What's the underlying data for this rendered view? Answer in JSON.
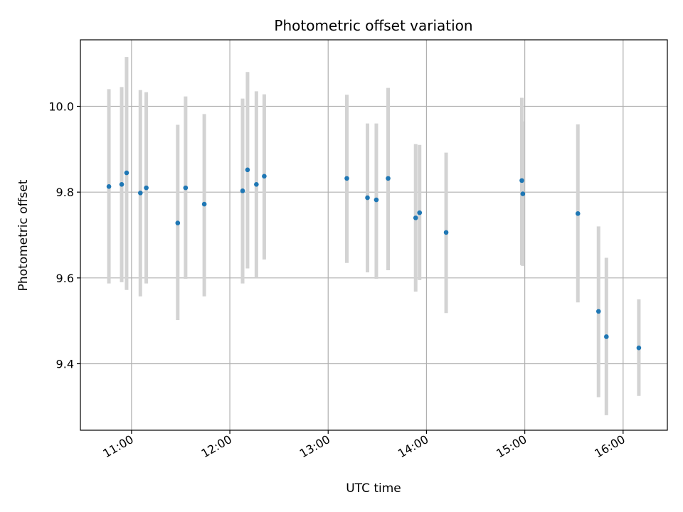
{
  "chart_data": {
    "type": "scatter",
    "title": "Photometric offset variation",
    "xlabel": "UTC time",
    "ylabel": "Photometric offset",
    "x_unit": "hours UTC",
    "xlim": [
      10.48,
      16.45
    ],
    "ylim": [
      9.245,
      10.155
    ],
    "x_ticks": [
      {
        "value": 11,
        "label": "11:00"
      },
      {
        "value": 12,
        "label": "12:00"
      },
      {
        "value": 13,
        "label": "13:00"
      },
      {
        "value": 14,
        "label": "14:00"
      },
      {
        "value": 15,
        "label": "15:00"
      },
      {
        "value": 16,
        "label": "16:00"
      }
    ],
    "y_ticks": [
      {
        "value": 9.4,
        "label": "9.4"
      },
      {
        "value": 9.6,
        "label": "9.6"
      },
      {
        "value": 9.8,
        "label": "9.8"
      },
      {
        "value": 10.0,
        "label": "10.0"
      }
    ],
    "grid": true,
    "marker_color": "#1f77b4",
    "errorbar_color": "#d3d3d3",
    "points": [
      {
        "x": 10.77,
        "y": 9.813,
        "err_low": 9.587,
        "err_high": 10.04
      },
      {
        "x": 10.9,
        "y": 9.818,
        "err_low": 9.59,
        "err_high": 10.045
      },
      {
        "x": 10.95,
        "y": 9.845,
        "err_low": 9.572,
        "err_high": 10.115
      },
      {
        "x": 11.09,
        "y": 9.798,
        "err_low": 9.557,
        "err_high": 10.038
      },
      {
        "x": 11.15,
        "y": 9.81,
        "err_low": 9.587,
        "err_high": 10.033
      },
      {
        "x": 11.47,
        "y": 9.728,
        "err_low": 9.502,
        "err_high": 9.957
      },
      {
        "x": 11.55,
        "y": 9.81,
        "err_low": 9.598,
        "err_high": 10.023
      },
      {
        "x": 11.74,
        "y": 9.772,
        "err_low": 9.557,
        "err_high": 9.982
      },
      {
        "x": 12.13,
        "y": 9.803,
        "err_low": 9.587,
        "err_high": 10.018
      },
      {
        "x": 12.18,
        "y": 9.852,
        "err_low": 9.622,
        "err_high": 10.08
      },
      {
        "x": 12.27,
        "y": 9.818,
        "err_low": 9.6,
        "err_high": 10.035
      },
      {
        "x": 12.35,
        "y": 9.837,
        "err_low": 9.643,
        "err_high": 10.028
      },
      {
        "x": 13.19,
        "y": 9.832,
        "err_low": 9.635,
        "err_high": 10.027
      },
      {
        "x": 13.4,
        "y": 9.787,
        "err_low": 9.613,
        "err_high": 9.96
      },
      {
        "x": 13.49,
        "y": 9.782,
        "err_low": 9.598,
        "err_high": 9.96
      },
      {
        "x": 13.61,
        "y": 9.832,
        "err_low": 9.618,
        "err_high": 10.043
      },
      {
        "x": 13.89,
        "y": 9.74,
        "err_low": 9.568,
        "err_high": 9.912
      },
      {
        "x": 13.93,
        "y": 9.752,
        "err_low": 9.595,
        "err_high": 9.91
      },
      {
        "x": 14.2,
        "y": 9.706,
        "err_low": 9.518,
        "err_high": 9.892
      },
      {
        "x": 14.97,
        "y": 9.827,
        "err_low": 9.63,
        "err_high": 10.02
      },
      {
        "x": 14.98,
        "y": 9.796,
        "err_low": 9.628,
        "err_high": 9.965
      },
      {
        "x": 15.54,
        "y": 9.75,
        "err_low": 9.543,
        "err_high": 9.958
      },
      {
        "x": 15.75,
        "y": 9.522,
        "err_low": 9.322,
        "err_high": 9.72
      },
      {
        "x": 15.83,
        "y": 9.463,
        "err_low": 9.28,
        "err_high": 9.647
      },
      {
        "x": 16.16,
        "y": 9.437,
        "err_low": 9.325,
        "err_high": 9.55
      }
    ]
  }
}
